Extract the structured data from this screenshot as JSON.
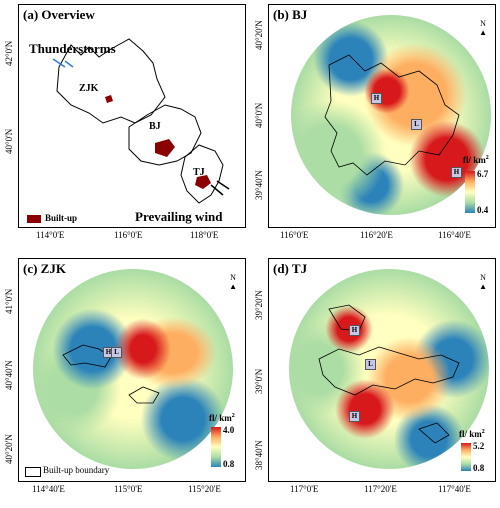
{
  "panels": {
    "a": {
      "title": "(a) Overview",
      "xticks": [
        "114°0'E",
        "116°0'E",
        "118°0'E"
      ],
      "yticks": [
        "42°0'N",
        "40°0'N"
      ],
      "labels": {
        "zjk": "ZJK",
        "bj": "BJ",
        "tj": "TJ"
      },
      "thunderstorms": "Thunderstorms",
      "prevailing_wind": "Prevailing wind",
      "legend_builtup": "Built-up"
    },
    "b": {
      "title": "(b) BJ",
      "xticks": [
        "116°0'E",
        "116°20'E",
        "116°40'E"
      ],
      "yticks": [
        "40°20'N",
        "40°0'N",
        "39°40'N"
      ],
      "cb_title": "fl/ km",
      "cb_sup": "2",
      "cb_max": "6.7",
      "cb_min": "0.4",
      "markers": [
        "H",
        "L",
        "H"
      ]
    },
    "c": {
      "title": "(c) ZJK",
      "xticks": [
        "114°40'E",
        "115°0'E",
        "115°20'E"
      ],
      "yticks": [
        "41°0'N",
        "40°40'N",
        "40°20'N"
      ],
      "cb_title": "fl/ km",
      "cb_sup": "2",
      "cb_max": "4.0",
      "cb_min": "0.8",
      "markers": [
        "H",
        "L"
      ],
      "legend_boundary": "Built-up boundary"
    },
    "d": {
      "title": "(d) TJ",
      "xticks": [
        "117°0'E",
        "117°20'E",
        "117°40'E"
      ],
      "yticks": [
        "39°20'N",
        "39°0'N",
        "38°40'N"
      ],
      "cb_title": "fl/ km",
      "cb_sup": "2",
      "cb_max": "5.2",
      "cb_min": "0.8",
      "markers": [
        "H",
        "L",
        "H"
      ]
    }
  },
  "north_label": "N",
  "colors": {
    "builtup": "#8b0000",
    "high": "#d7191c",
    "mid": "#ffff80",
    "low": "#2b83ba"
  }
}
